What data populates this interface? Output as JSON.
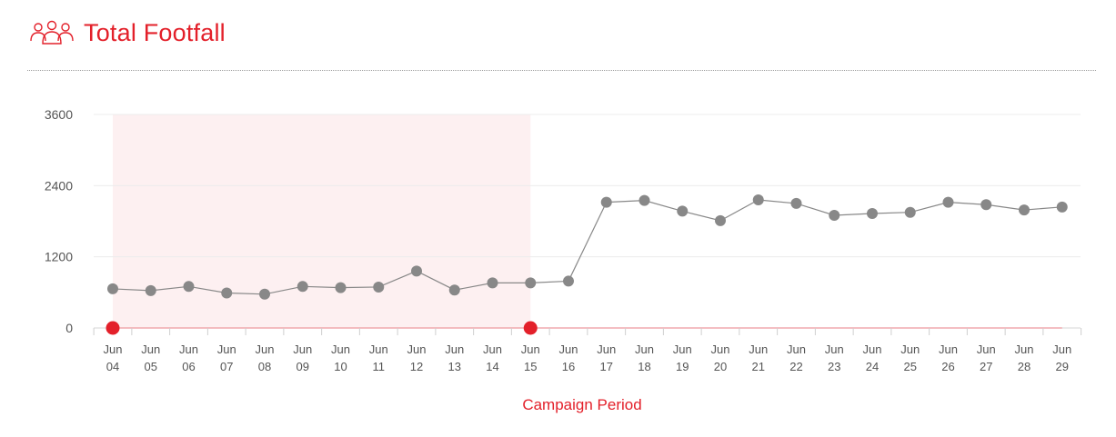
{
  "header": {
    "title": "Total Footfall",
    "icon": "people-group-icon"
  },
  "caption": "Campaign Period",
  "colors": {
    "accent": "#e3202a",
    "series": "#888888",
    "highlight": "#fdf0f1",
    "grid": "#ececec"
  },
  "chart_data": {
    "type": "line",
    "title": "Total Footfall",
    "xlabel": "",
    "ylabel": "",
    "ylim": [
      0,
      3600
    ],
    "yticks": [
      "0",
      "1200",
      "2400",
      "3600"
    ],
    "ytick_values": [
      0,
      1200,
      2400,
      3600
    ],
    "grid": true,
    "categories": [
      [
        "Jun",
        "04"
      ],
      [
        "Jun",
        "05"
      ],
      [
        "Jun",
        "06"
      ],
      [
        "Jun",
        "07"
      ],
      [
        "Jun",
        "08"
      ],
      [
        "Jun",
        "09"
      ],
      [
        "Jun",
        "10"
      ],
      [
        "Jun",
        "11"
      ],
      [
        "Jun",
        "12"
      ],
      [
        "Jun",
        "13"
      ],
      [
        "Jun",
        "14"
      ],
      [
        "Jun",
        "15"
      ],
      [
        "Jun",
        "16"
      ],
      [
        "Jun",
        "17"
      ],
      [
        "Jun",
        "18"
      ],
      [
        "Jun",
        "19"
      ],
      [
        "Jun",
        "20"
      ],
      [
        "Jun",
        "21"
      ],
      [
        "Jun",
        "22"
      ],
      [
        "Jun",
        "23"
      ],
      [
        "Jun",
        "24"
      ],
      [
        "Jun",
        "25"
      ],
      [
        "Jun",
        "26"
      ],
      [
        "Jun",
        "27"
      ],
      [
        "Jun",
        "28"
      ],
      [
        "Jun",
        "29"
      ]
    ],
    "series": [
      {
        "values": [
          660,
          630,
          700,
          590,
          570,
          700,
          680,
          690,
          960,
          640,
          760,
          760,
          790,
          2120,
          2150,
          1970,
          1810,
          2160,
          2100,
          1900,
          1930,
          1950,
          2120,
          2080,
          1990,
          2040
        ]
      }
    ],
    "campaign_period": {
      "start": "Jun 04",
      "end": "Jun 15",
      "label": "Campaign Period"
    }
  }
}
